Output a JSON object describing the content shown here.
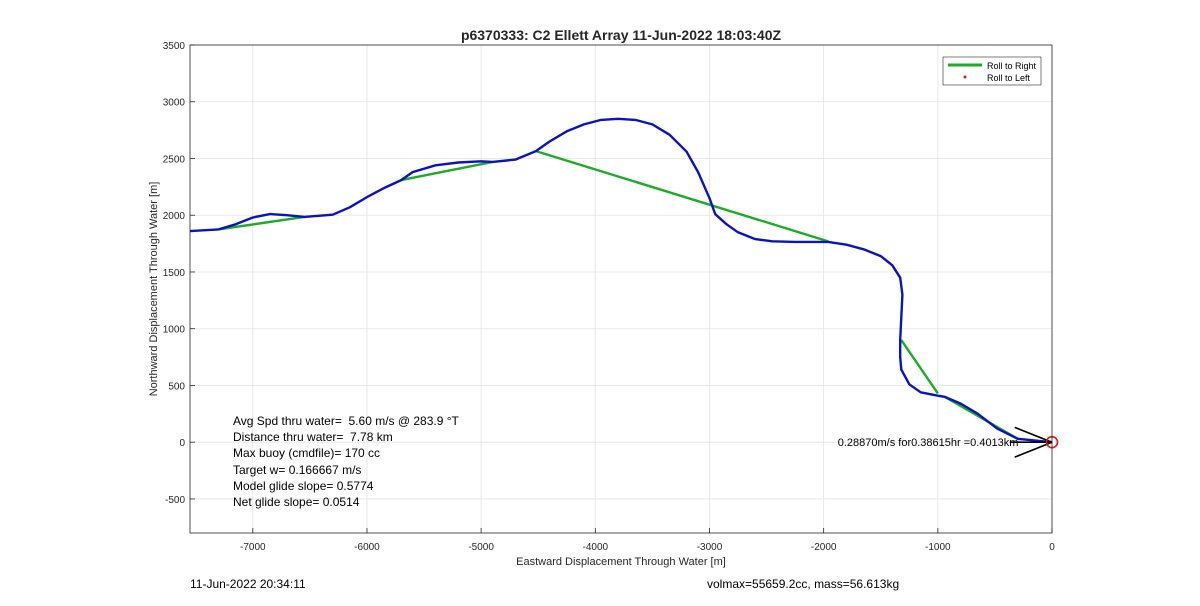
{
  "chart_data": {
    "type": "line",
    "title": "p6370333: C2 Ellett Array 11-Jun-2022 18:03:40Z",
    "xlabel": "Eastward Displacement Through Water [m]",
    "ylabel": "Northward Displacement Through Water [m]",
    "xlim": [
      -7550,
      0
    ],
    "ylim": [
      -800,
      3500
    ],
    "x_ticks": [
      -7000,
      -6000,
      -5000,
      -4000,
      -3000,
      -2000,
      -1000,
      0
    ],
    "y_ticks": [
      -500,
      0,
      500,
      1000,
      1500,
      2000,
      2500,
      3000,
      3500
    ],
    "grid": true,
    "legend_position": "top-right",
    "colors": {
      "roll_right": "#1faa2a",
      "roll_left": "#e0161d",
      "track": "#0a14b8",
      "current_arrow": "#000000",
      "end_marker": "#e0161d"
    },
    "series": [
      {
        "name": "Roll to Right",
        "style": "line",
        "segments": [
          [
            [
              -7300,
              1875
            ],
            [
              -6550,
              1985
            ]
          ],
          [
            [
              -5700,
              2310
            ],
            [
              -4900,
              2470
            ]
          ],
          [
            [
              -4520,
              2565
            ],
            [
              -1960,
              1770
            ]
          ],
          [
            [
              -1320,
              900
            ],
            [
              -1000,
              430
            ]
          ],
          [
            [
              -940,
              400
            ],
            [
              -300,
              30
            ]
          ]
        ]
      },
      {
        "name": "Roll to Left",
        "style": "marker",
        "segments": []
      },
      {
        "name": "",
        "style": "track",
        "points": [
          [
            -7550,
            1860
          ],
          [
            -7300,
            1875
          ],
          [
            -7150,
            1920
          ],
          [
            -7000,
            1980
          ],
          [
            -6850,
            2010
          ],
          [
            -6700,
            2000
          ],
          [
            -6550,
            1985
          ],
          [
            -6300,
            2005
          ],
          [
            -6150,
            2070
          ],
          [
            -6000,
            2160
          ],
          [
            -5850,
            2240
          ],
          [
            -5700,
            2310
          ],
          [
            -5600,
            2380
          ],
          [
            -5400,
            2440
          ],
          [
            -5200,
            2465
          ],
          [
            -5000,
            2475
          ],
          [
            -4900,
            2470
          ],
          [
            -4700,
            2490
          ],
          [
            -4520,
            2565
          ],
          [
            -4400,
            2650
          ],
          [
            -4250,
            2740
          ],
          [
            -4100,
            2800
          ],
          [
            -3950,
            2840
          ],
          [
            -3800,
            2850
          ],
          [
            -3650,
            2840
          ],
          [
            -3500,
            2800
          ],
          [
            -3350,
            2710
          ],
          [
            -3200,
            2560
          ],
          [
            -3100,
            2380
          ],
          [
            -3000,
            2150
          ],
          [
            -2950,
            2010
          ],
          [
            -2850,
            1920
          ],
          [
            -2750,
            1850
          ],
          [
            -2600,
            1790
          ],
          [
            -2450,
            1770
          ],
          [
            -2250,
            1765
          ],
          [
            -1960,
            1765
          ],
          [
            -1800,
            1740
          ],
          [
            -1650,
            1700
          ],
          [
            -1500,
            1640
          ],
          [
            -1400,
            1560
          ],
          [
            -1330,
            1450
          ],
          [
            -1310,
            1300
          ],
          [
            -1320,
            1100
          ],
          [
            -1330,
            900
          ],
          [
            -1330,
            750
          ],
          [
            -1320,
            640
          ],
          [
            -1250,
            510
          ],
          [
            -1150,
            440
          ],
          [
            -1000,
            410
          ],
          [
            -940,
            400
          ],
          [
            -800,
            340
          ],
          [
            -650,
            250
          ],
          [
            -480,
            120
          ],
          [
            -300,
            30
          ],
          [
            0,
            0
          ]
        ]
      }
    ],
    "current_arrow": {
      "from": [
        0,
        0
      ],
      "to": [
        -370,
        0
      ]
    },
    "end_marker": [
      0,
      0
    ],
    "current_label": "0.28870m/s for0.38615hr =0.4013km",
    "annotations": [
      "Avg Spd thru water=  5.60 m/s @ 283.9 °T",
      "Distance thru water=  7.78 km",
      "Max buoy (cmdfile)= 170 cc",
      "Target w= 0.166667 m/s",
      "Model glide slope= 0.5774",
      "Net glide slope= 0.0514"
    ],
    "footer_left": "11-Jun-2022 20:34:11",
    "footer_right": "volmax=55659.2cc, mass=56.613kg"
  }
}
